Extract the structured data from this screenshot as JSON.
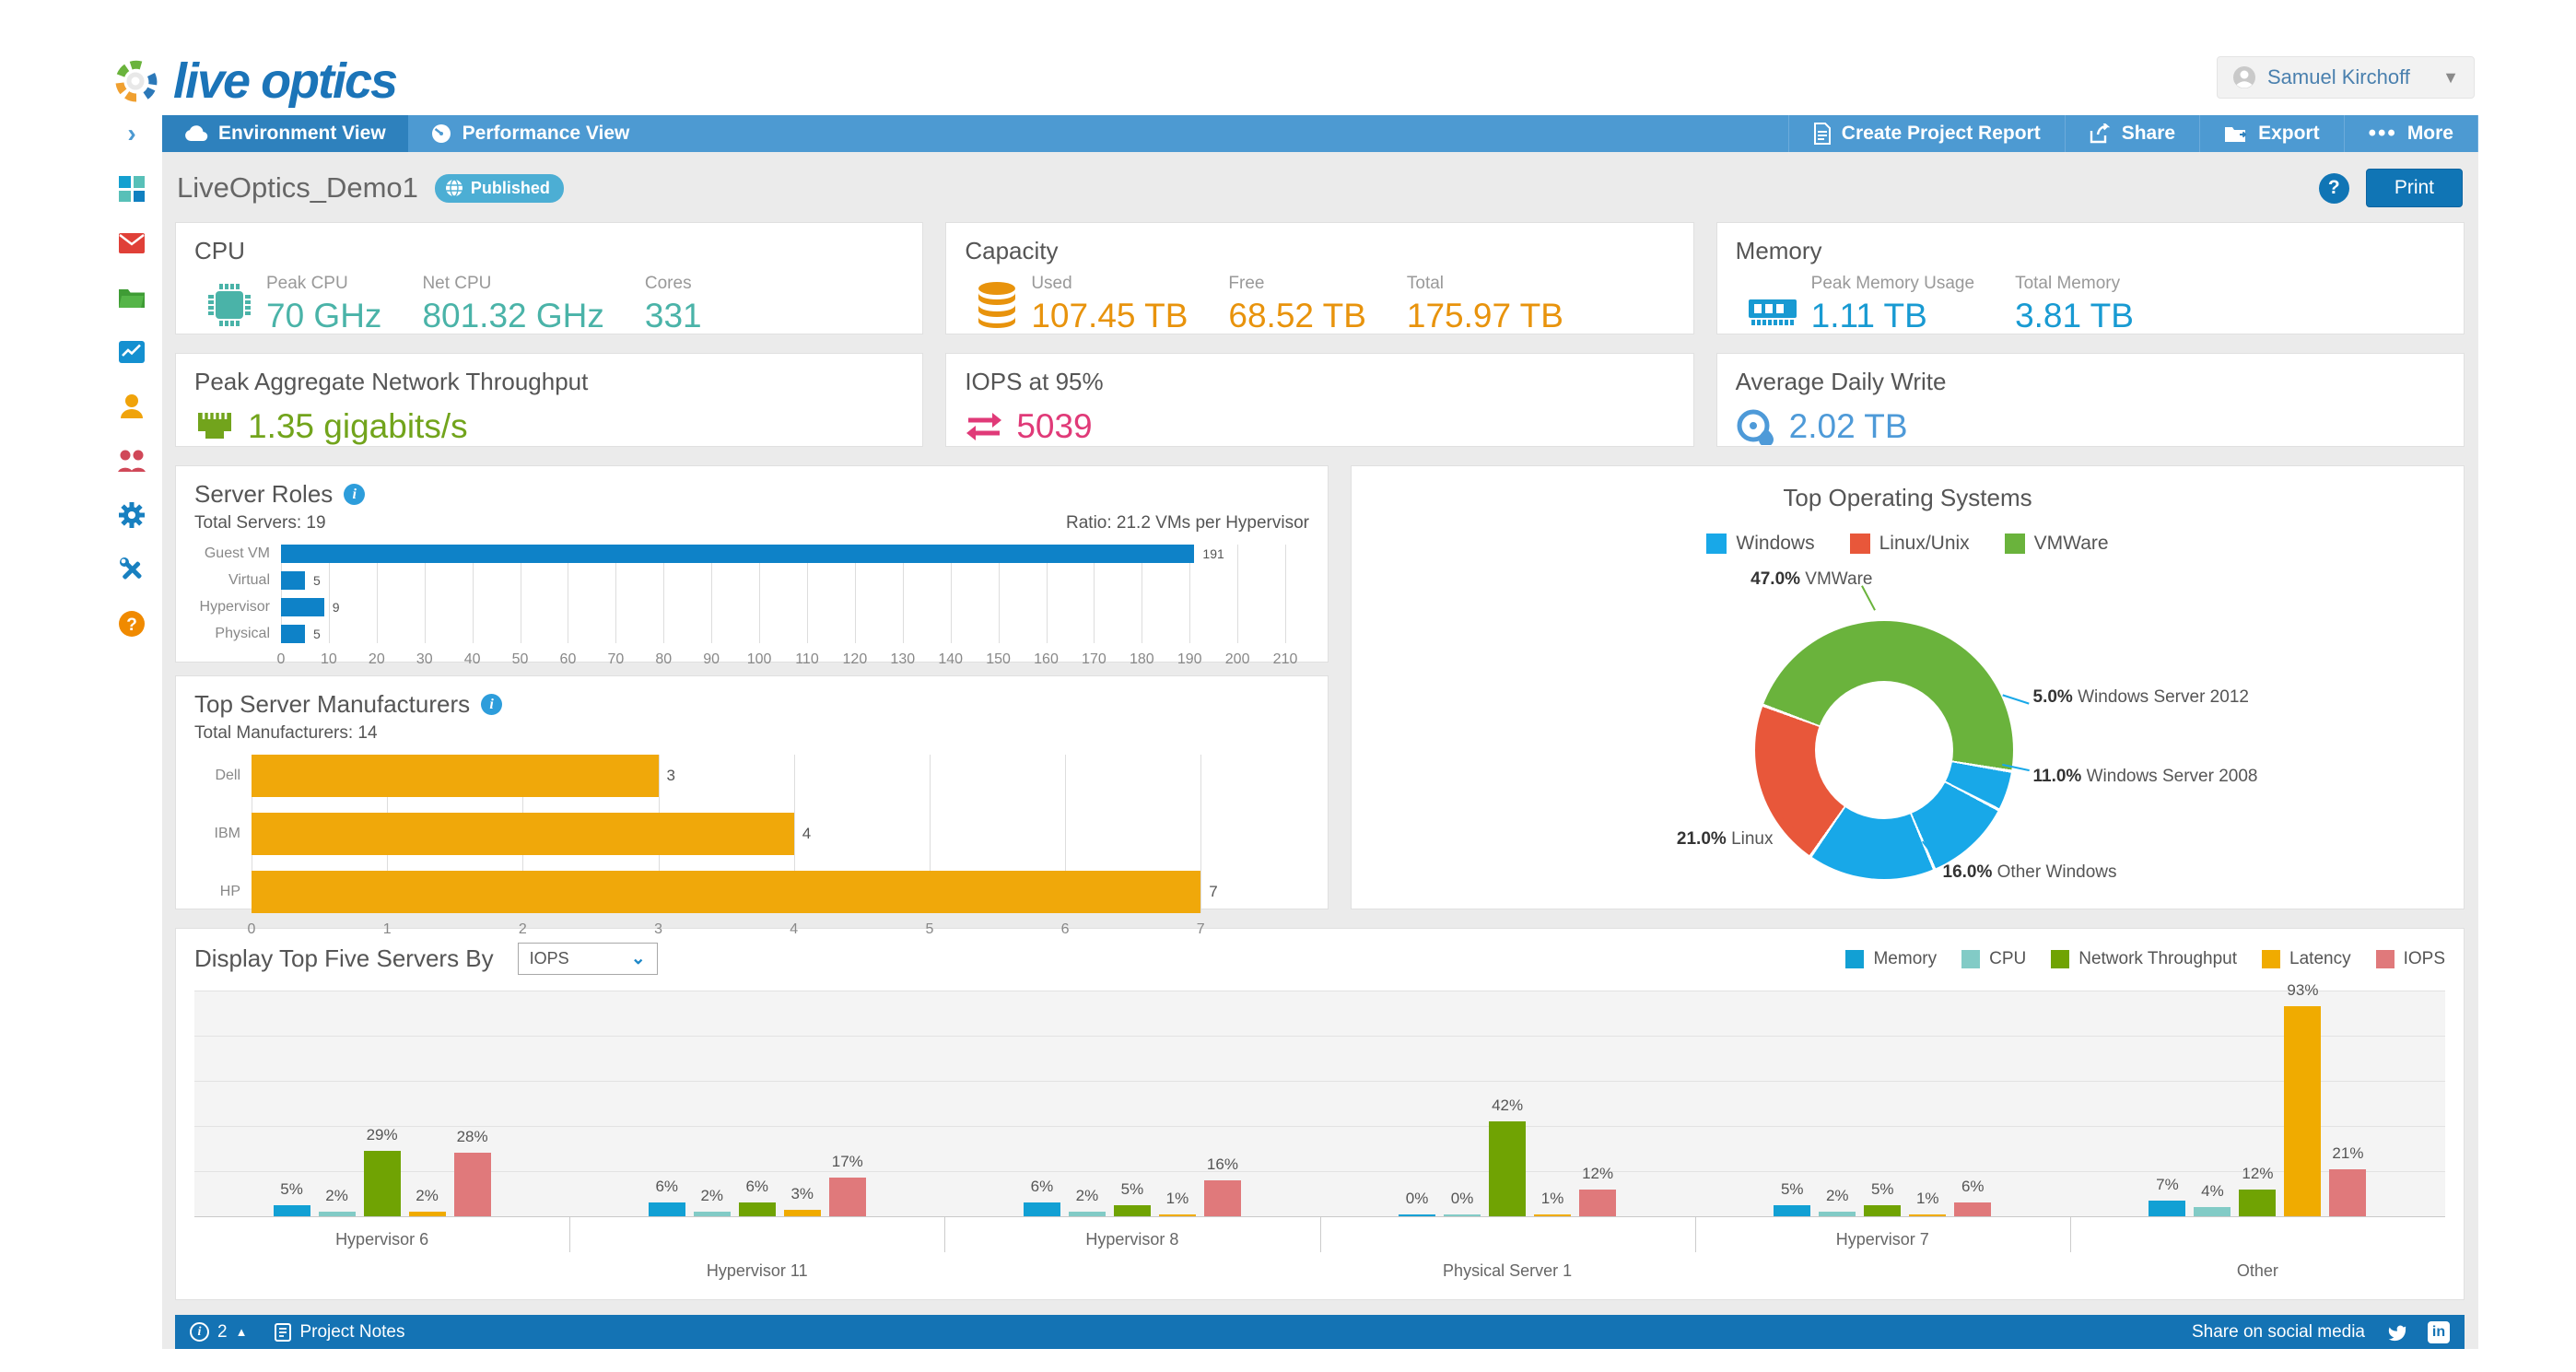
{
  "header": {
    "logo_text": "live optics",
    "user_name": "Samuel Kirchoff"
  },
  "tabbar": {
    "collapse_glyph": "›",
    "tabs": [
      {
        "label": "Environment View"
      },
      {
        "label": "Performance View"
      }
    ],
    "actions": [
      {
        "label": "Create Project Report"
      },
      {
        "label": "Share"
      },
      {
        "label": "Export"
      },
      {
        "label": "More"
      }
    ]
  },
  "sidebar": {
    "icons": [
      "dashboard",
      "mail",
      "folder",
      "reports",
      "user",
      "team",
      "settings",
      "tools",
      "help"
    ]
  },
  "titlebar": {
    "project_name": "LiveOptics_Demo1",
    "badge": "Published",
    "help_label": "?",
    "print_label": "Print"
  },
  "cards": {
    "cpu": {
      "title": "CPU",
      "color": "#4ab3a8",
      "metrics": [
        {
          "label": "Peak CPU",
          "value": "70 GHz"
        },
        {
          "label": "Net CPU",
          "value": "801.32 GHz"
        },
        {
          "label": "Cores",
          "value": "331"
        }
      ]
    },
    "capacity": {
      "title": "Capacity",
      "color": "#e8930c",
      "metrics": [
        {
          "label": "Used",
          "value": "107.45 TB"
        },
        {
          "label": "Free",
          "value": "68.52 TB"
        },
        {
          "label": "Total",
          "value": "175.97 TB"
        }
      ]
    },
    "memory": {
      "title": "Memory",
      "color": "#189ad2",
      "metrics": [
        {
          "label": "Peak Memory Usage",
          "value": "1.11 TB"
        },
        {
          "label": "Total Memory",
          "value": "3.81 TB"
        }
      ]
    },
    "network": {
      "title": "Peak Aggregate Network Throughput",
      "value": "1.35 gigabits/s",
      "color": "#72a41c"
    },
    "iops": {
      "title": "IOPS at 95%",
      "value": "5039",
      "color": "#e03a78"
    },
    "daily_write": {
      "title": "Average Daily Write",
      "value": "2.02 TB",
      "color": "#4e9ad8"
    }
  },
  "top5_controls": {
    "label": "Display Top Five Servers By",
    "selected": "IOPS"
  },
  "footer": {
    "notes_count": "2",
    "project_notes": "Project Notes",
    "share_text": "Share on social media"
  },
  "chart_data": [
    {
      "id": "server_roles",
      "type": "bar",
      "orientation": "horizontal",
      "title": "Server Roles",
      "subtitle_left": "Total Servers: 19",
      "subtitle_right": "Ratio: 21.2 VMs per Hypervisor",
      "categories": [
        "Guest VM",
        "Virtual",
        "Hypervisor",
        "Physical"
      ],
      "values": [
        191,
        5,
        9,
        5
      ],
      "bar_color": "#0e82c8",
      "xlim": [
        0,
        215
      ],
      "grid": true,
      "ticks": [
        0,
        10,
        20,
        30,
        40,
        50,
        60,
        70,
        80,
        90,
        100,
        110,
        120,
        130,
        140,
        150,
        160,
        170,
        180,
        190,
        200,
        210
      ]
    },
    {
      "id": "manufacturers",
      "type": "bar",
      "orientation": "horizontal",
      "title": "Top Server Manufacturers",
      "subtitle_left": "Total Manufacturers: 14",
      "categories": [
        "Dell",
        "IBM",
        "HP"
      ],
      "values": [
        3,
        4,
        7
      ],
      "bar_color": "#f0a80a",
      "xlim": [
        0,
        7.8
      ],
      "grid": true,
      "ticks": [
        0,
        1,
        2,
        3,
        4,
        5,
        6,
        7
      ]
    },
    {
      "id": "top_os",
      "type": "pie",
      "donut": true,
      "title": "Top Operating Systems",
      "legend": [
        {
          "label": "Windows",
          "color": "#18a8e8"
        },
        {
          "label": "Linux/Unix",
          "color": "#e8573a"
        },
        {
          "label": "VMWare",
          "color": "#6ab33c"
        }
      ],
      "start_angle": 291,
      "slices": [
        {
          "label": "VMWare",
          "pct": 47.0,
          "color": "#6ab33c"
        },
        {
          "label": "Windows Server 2012",
          "pct": 5.0,
          "color": "#18a8e8"
        },
        {
          "label": "Windows Server 2008",
          "pct": 11.0,
          "color": "#18a8e8"
        },
        {
          "label": "Other Windows",
          "pct": 16.0,
          "color": "#18a8e8"
        },
        {
          "label": "Linux",
          "pct": 21.0,
          "color": "#e8573a"
        }
      ]
    },
    {
      "id": "top5_servers",
      "type": "bar",
      "grouped": true,
      "unit": "%",
      "ylim": [
        0,
        100
      ],
      "grid": true,
      "categories": [
        "Hypervisor 6",
        "Hypervisor 11",
        "Hypervisor 8",
        "Physical Server 1",
        "Hypervisor 7",
        "Other"
      ],
      "series": [
        {
          "name": "Memory",
          "color": "#12a0d4",
          "values": [
            5,
            6,
            6,
            0,
            5,
            7
          ]
        },
        {
          "name": "CPU",
          "color": "#82cbc6",
          "values": [
            2,
            2,
            2,
            0,
            2,
            4
          ]
        },
        {
          "name": "Network Throughput",
          "color": "#70a303",
          "values": [
            29,
            6,
            5,
            42,
            5,
            12
          ]
        },
        {
          "name": "Latency",
          "color": "#f0ab00",
          "values": [
            2,
            3,
            1,
            1,
            1,
            93
          ]
        },
        {
          "name": "IOPS",
          "color": "#e0797b",
          "values": [
            28,
            17,
            16,
            12,
            6,
            21
          ]
        }
      ]
    }
  ]
}
